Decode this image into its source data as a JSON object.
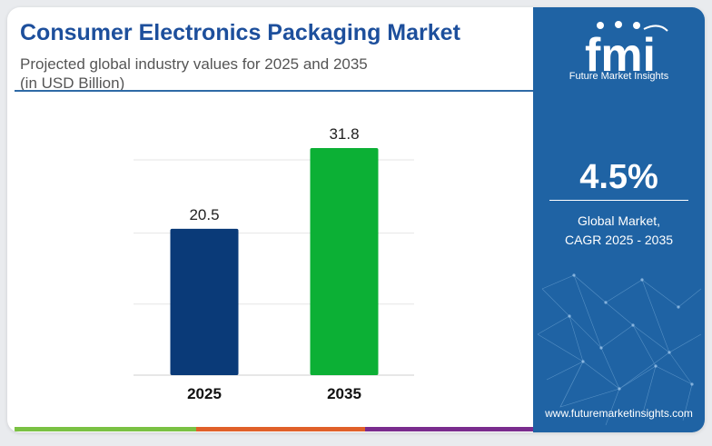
{
  "header": {
    "title": "Consumer Electronics Packaging Market",
    "subtitle_line1": "Projected global industry values for 2025 and 2035",
    "subtitle_line2": "(in USD Billion)"
  },
  "brand": {
    "logo_text": "fmi",
    "logo_subtitle": "Future Market Insights",
    "website": "www.futuremarketinsights.com",
    "panel_color": "#1f63a4"
  },
  "stat": {
    "value": "4.5%",
    "label_line1": "Global Market,",
    "label_line2": "CAGR 2025 - 2035"
  },
  "chart_data": {
    "type": "bar",
    "categories": [
      "2025",
      "2035"
    ],
    "values": [
      20.5,
      31.8
    ],
    "data_labels": [
      "20.5",
      "31.8"
    ],
    "colors": [
      "#0a3a78",
      "#0cb035"
    ],
    "ylim": [
      0,
      31.8
    ],
    "grid": true,
    "title": "",
    "xlabel": "",
    "ylabel": ""
  }
}
